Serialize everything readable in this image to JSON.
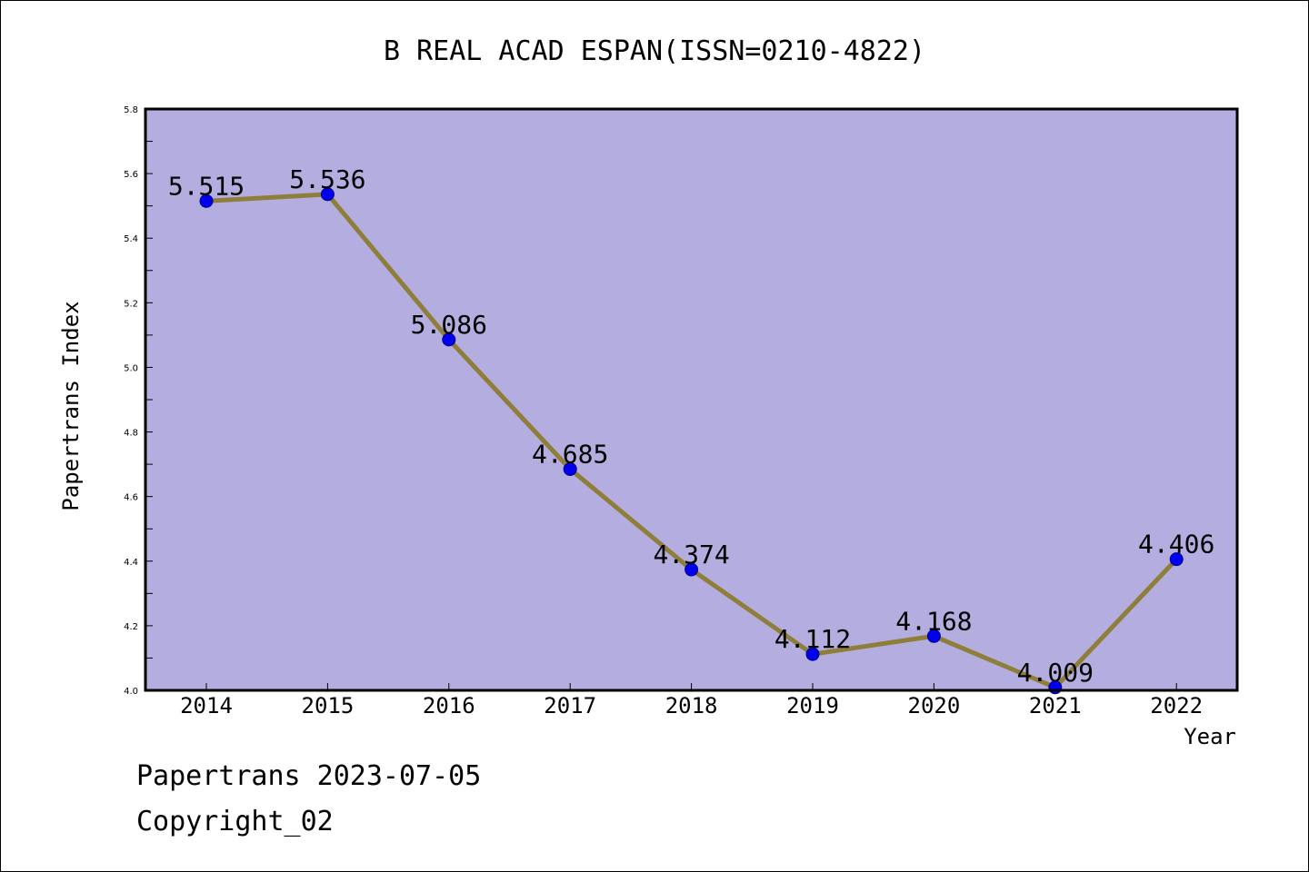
{
  "chart_data": {
    "type": "line",
    "title": "B REAL ACAD ESPAN(ISSN=0210-4822)",
    "xlabel": "Year",
    "ylabel": "Papertrans Index",
    "categories": [
      "2014",
      "2015",
      "2016",
      "2017",
      "2018",
      "2019",
      "2020",
      "2021",
      "2022"
    ],
    "series": [
      {
        "values": [
          5.515,
          5.536,
          5.086,
          4.685,
          4.374,
          4.112,
          4.168,
          4.009,
          4.406
        ],
        "labels": [
          "5.515",
          "5.536",
          "5.086",
          "4.685",
          "4.374",
          "4.112",
          "4.168",
          "4.009",
          "4.406"
        ]
      }
    ],
    "ylim": [
      4.0,
      5.8
    ],
    "yticks": [
      "4.0",
      "4.2",
      "4.4",
      "4.6",
      "4.8",
      "5.0",
      "5.2",
      "5.4",
      "5.6",
      "5.8"
    ],
    "grid": false,
    "legend": "none",
    "colors": {
      "plot_background": "#b4aee0",
      "line": "#8e7e3a",
      "marker": "#0000ee",
      "marker_edge": "#00008a"
    }
  },
  "footer": {
    "line1": "Papertrans 2023-07-05",
    "line2": "Copyright_02"
  }
}
